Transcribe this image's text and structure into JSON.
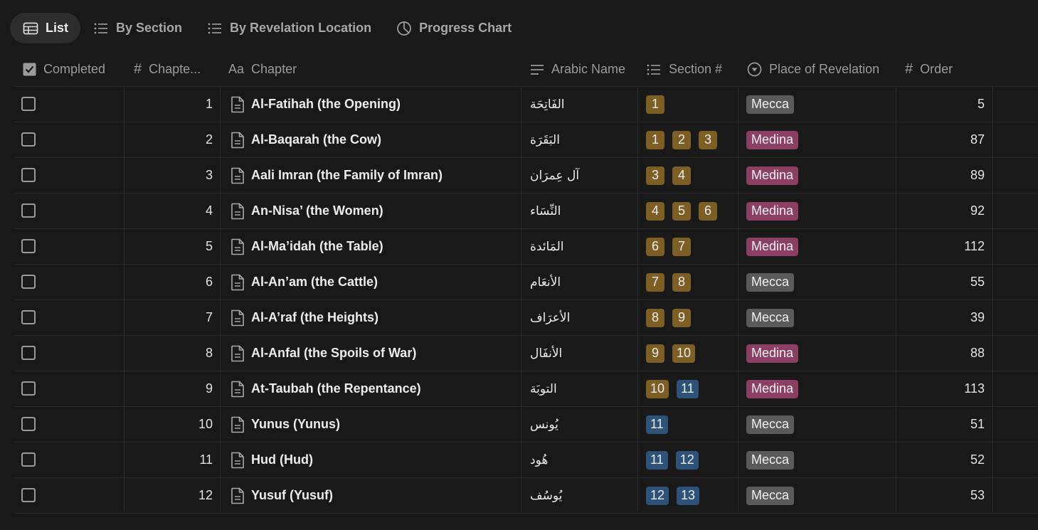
{
  "tabs": [
    {
      "label": "List",
      "icon": "table-icon",
      "active": true
    },
    {
      "label": "By Section",
      "icon": "list-icon",
      "active": false
    },
    {
      "label": "By Revelation Location",
      "icon": "list-icon",
      "active": false
    },
    {
      "label": "Progress Chart",
      "icon": "pie-chart-icon",
      "active": false
    }
  ],
  "columns": {
    "completed": "Completed",
    "chapter_num": "Chapte...",
    "chapter": "Chapter",
    "arabic": "Arabic Name",
    "section": "Section #",
    "place": "Place of Revelation",
    "order": "Order"
  },
  "colors": {
    "background": "#191919",
    "section_gold": "#7d5f26",
    "section_blue": "#2e5278",
    "place_mecca": "#5a5a5a",
    "place_medina": "#8b3f63"
  },
  "rows": [
    {
      "num": "1",
      "chapter": "Al-Fatihah (the Opening)",
      "arabic": "الفَاتِحَة",
      "sections": [
        {
          "n": "1",
          "c": "gold"
        }
      ],
      "place": "Mecca",
      "order": "5"
    },
    {
      "num": "2",
      "chapter": "Al-Baqarah (the Cow)",
      "arabic": "البَقَرَة",
      "sections": [
        {
          "n": "1",
          "c": "gold"
        },
        {
          "n": "2",
          "c": "gold"
        },
        {
          "n": "3",
          "c": "gold"
        }
      ],
      "place": "Medina",
      "order": "87"
    },
    {
      "num": "3",
      "chapter": "Aali Imran (the Family of Imran)",
      "arabic": "آل عِمرَان",
      "sections": [
        {
          "n": "3",
          "c": "gold"
        },
        {
          "n": "4",
          "c": "gold"
        }
      ],
      "place": "Medina",
      "order": "89"
    },
    {
      "num": "4",
      "chapter": "An-Nisa’ (the Women)",
      "arabic": "النِّسَاء",
      "sections": [
        {
          "n": "4",
          "c": "gold"
        },
        {
          "n": "5",
          "c": "gold"
        },
        {
          "n": "6",
          "c": "gold"
        }
      ],
      "place": "Medina",
      "order": "92"
    },
    {
      "num": "5",
      "chapter": "Al-Ma’idah (the Table)",
      "arabic": "المَائدة",
      "sections": [
        {
          "n": "6",
          "c": "gold"
        },
        {
          "n": "7",
          "c": "gold"
        }
      ],
      "place": "Medina",
      "order": "112"
    },
    {
      "num": "6",
      "chapter": "Al-An’am (the Cattle)",
      "arabic": "الأنعَام",
      "sections": [
        {
          "n": "7",
          "c": "gold"
        },
        {
          "n": "8",
          "c": "gold"
        }
      ],
      "place": "Mecca",
      "order": "55"
    },
    {
      "num": "7",
      "chapter": "Al-A’raf (the Heights)",
      "arabic": "الأعرَاف",
      "sections": [
        {
          "n": "8",
          "c": "gold"
        },
        {
          "n": "9",
          "c": "gold"
        }
      ],
      "place": "Mecca",
      "order": "39"
    },
    {
      "num": "8",
      "chapter": "Al-Anfal (the Spoils of War)",
      "arabic": "الأنفَال",
      "sections": [
        {
          "n": "9",
          "c": "gold"
        },
        {
          "n": "10",
          "c": "gold"
        }
      ],
      "place": "Medina",
      "order": "88"
    },
    {
      "num": "9",
      "chapter": "At-Taubah (the Repentance)",
      "arabic": "التوبَة",
      "sections": [
        {
          "n": "10",
          "c": "gold"
        },
        {
          "n": "11",
          "c": "blue"
        }
      ],
      "place": "Medina",
      "order": "113"
    },
    {
      "num": "10",
      "chapter": "Yunus (Yunus)",
      "arabic": "يُونس",
      "sections": [
        {
          "n": "11",
          "c": "blue"
        }
      ],
      "place": "Mecca",
      "order": "51"
    },
    {
      "num": "11",
      "chapter": "Hud (Hud)",
      "arabic": "هُود",
      "sections": [
        {
          "n": "11",
          "c": "blue"
        },
        {
          "n": "12",
          "c": "blue"
        }
      ],
      "place": "Mecca",
      "order": "52"
    },
    {
      "num": "12",
      "chapter": "Yusuf (Yusuf)",
      "arabic": "يُوسُف",
      "sections": [
        {
          "n": "12",
          "c": "blue"
        },
        {
          "n": "13",
          "c": "blue"
        }
      ],
      "place": "Mecca",
      "order": "53"
    }
  ]
}
